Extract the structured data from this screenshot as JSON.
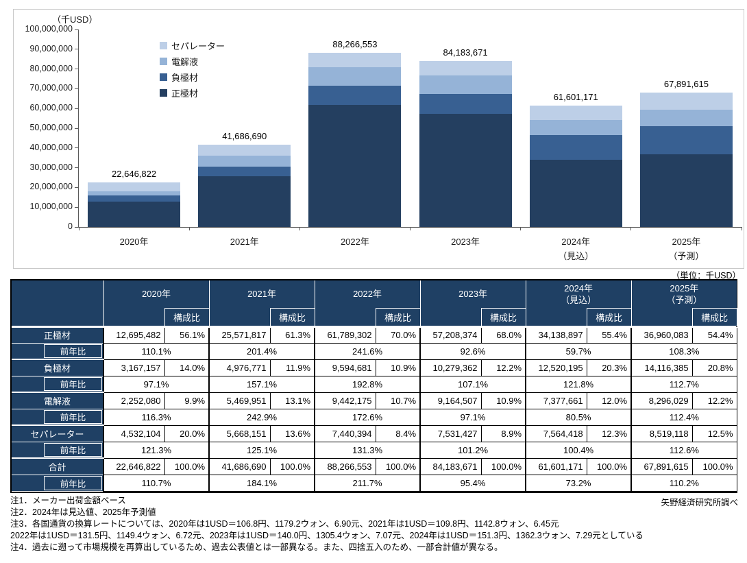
{
  "chart_data": {
    "type": "bar",
    "stacked": true,
    "y_axis_unit": "（千USD）",
    "ylim": [
      0,
      100000000
    ],
    "y_tick_step": 10000000,
    "grid": false,
    "legend_position": "upper-left-inside",
    "categories": [
      {
        "label": "2020年",
        "sub": ""
      },
      {
        "label": "2021年",
        "sub": ""
      },
      {
        "label": "2022年",
        "sub": ""
      },
      {
        "label": "2023年",
        "sub": ""
      },
      {
        "label": "2024年",
        "sub": "（見込）"
      },
      {
        "label": "2025年",
        "sub": "（予測）"
      }
    ],
    "series": [
      {
        "name": "正極材",
        "color": "#243f60",
        "values": [
          12695482,
          25571817,
          61789302,
          57208374,
          34138897,
          36960083
        ]
      },
      {
        "name": "負極材",
        "color": "#386092",
        "values": [
          3167157,
          4976771,
          9594681,
          10279362,
          12520195,
          14116385
        ]
      },
      {
        "name": "電解液",
        "color": "#95b3d7",
        "values": [
          2252080,
          5469951,
          9442175,
          9164507,
          7377661,
          8296029
        ]
      },
      {
        "name": "セパレーター",
        "color": "#bdcfe7",
        "values": [
          4532104,
          5668151,
          7440394,
          7531427,
          7564418,
          8519118
        ]
      }
    ],
    "totals": [
      22646822,
      41686690,
      88266553,
      84183671,
      61601171,
      67891615
    ]
  },
  "table": {
    "unit_label": "（単位：千USD）",
    "share_header": "構成比",
    "yoy_label": "前年比",
    "header_color": "#1f4064",
    "col_groups": [
      {
        "year": "2020年",
        "sub": ""
      },
      {
        "year": "2021年",
        "sub": ""
      },
      {
        "year": "2022年",
        "sub": ""
      },
      {
        "year": "2023年",
        "sub": ""
      },
      {
        "year": "2024年",
        "sub": "（見込）"
      },
      {
        "year": "2025年",
        "sub": "（予測）"
      }
    ],
    "rows": [
      {
        "label": "正極材",
        "values": [
          "12,695,482",
          "25,571,817",
          "61,789,302",
          "57,208,374",
          "34,138,897",
          "36,960,083"
        ],
        "shares": [
          "56.1%",
          "61.3%",
          "70.0%",
          "68.0%",
          "55.4%",
          "54.4%"
        ],
        "yoy": [
          "110.1%",
          "201.4%",
          "241.6%",
          "92.6%",
          "59.7%",
          "108.3%"
        ]
      },
      {
        "label": "負極材",
        "values": [
          "3,167,157",
          "4,976,771",
          "9,594,681",
          "10,279,362",
          "12,520,195",
          "14,116,385"
        ],
        "shares": [
          "14.0%",
          "11.9%",
          "10.9%",
          "12.2%",
          "20.3%",
          "20.8%"
        ],
        "yoy": [
          "97.1%",
          "157.1%",
          "192.8%",
          "107.1%",
          "121.8%",
          "112.7%"
        ]
      },
      {
        "label": "電解液",
        "values": [
          "2,252,080",
          "5,469,951",
          "9,442,175",
          "9,164,507",
          "7,377,661",
          "8,296,029"
        ],
        "shares": [
          "9.9%",
          "13.1%",
          "10.7%",
          "10.9%",
          "12.0%",
          "12.2%"
        ],
        "yoy": [
          "116.3%",
          "242.9%",
          "172.6%",
          "97.1%",
          "80.5%",
          "112.4%"
        ]
      },
      {
        "label": "セパレーター",
        "values": [
          "4,532,104",
          "5,668,151",
          "7,440,394",
          "7,531,427",
          "7,564,418",
          "8,519,118"
        ],
        "shares": [
          "20.0%",
          "13.6%",
          "8.4%",
          "8.9%",
          "12.3%",
          "12.5%"
        ],
        "yoy": [
          "121.3%",
          "125.1%",
          "131.3%",
          "101.2%",
          "100.4%",
          "112.6%"
        ]
      },
      {
        "label": "合計",
        "values": [
          "22,646,822",
          "41,686,690",
          "88,266,553",
          "84,183,671",
          "61,601,171",
          "67,891,615"
        ],
        "shares": [
          "100.0%",
          "100.0%",
          "100.0%",
          "100.0%",
          "100.0%",
          "100.0%"
        ],
        "yoy": [
          "110.7%",
          "184.1%",
          "211.7%",
          "95.4%",
          "73.2%",
          "110.2%"
        ]
      }
    ]
  },
  "notes": {
    "lines": [
      "注1．メーカー出荷金額ベース",
      "注2．2024年は見込値、2025年予測値",
      "注3．各国通貨の換算レートについては、2020年は1USD＝106.8円、1179.2ウォン、6.90元、2021年は1USD＝109.8円、1142.8ウォン、6.45元",
      "2022年は1USD＝131.5円、1149.4ウォン、6.72元、2023年は1USD＝140.0円、1305.4ウォン、7.07元、2024年は1USD＝151.3円、1362.3ウォン、7.29元としている",
      "注4．過去に遡って市場規模を再算出しているため、過去公表値とは一部異なる。また、四捨五入のため、一部合計値が異なる。"
    ],
    "source": "矢野経済研究所調べ"
  }
}
